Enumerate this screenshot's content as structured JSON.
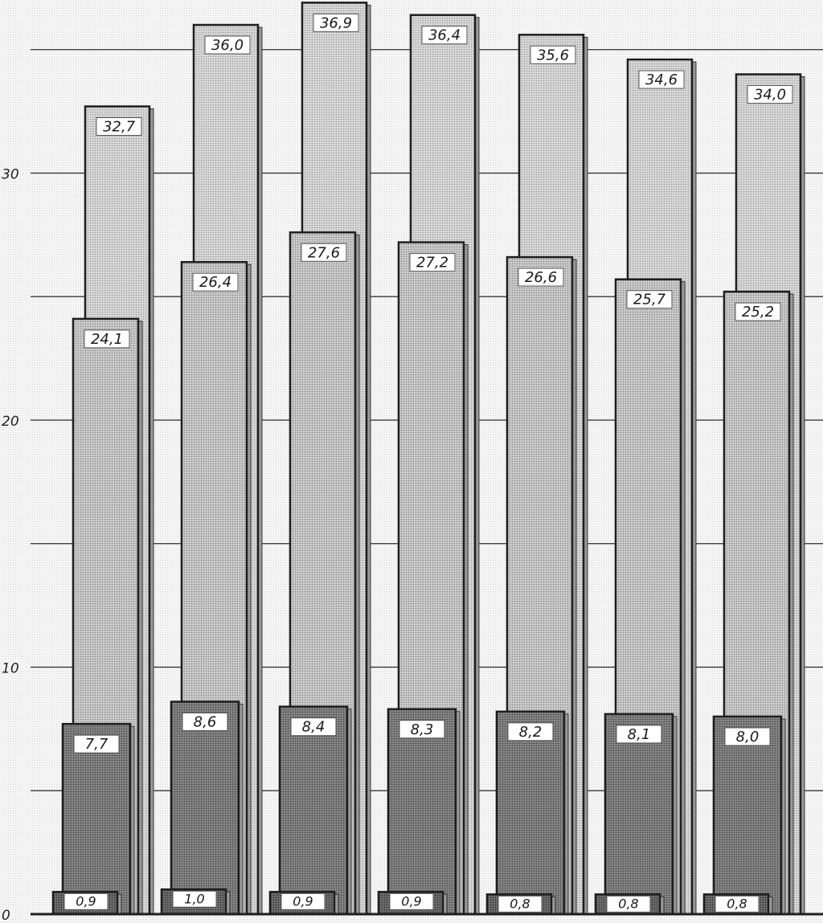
{
  "chart_data": {
    "type": "bar",
    "title": "",
    "xlabel": "",
    "ylabel": "",
    "ylim": [
      0,
      38
    ],
    "yticks": [
      0,
      10,
      20,
      30
    ],
    "ytick_labels": [
      "0",
      "10",
      "20",
      "30"
    ],
    "minor_gridlines": [
      5,
      15,
      25,
      35
    ],
    "grid": true,
    "legend": "none",
    "categories": [
      "",
      "",
      "",
      "",
      "",
      "",
      ""
    ],
    "series": [
      {
        "values": [
          32.7,
          36.0,
          36.9,
          36.4,
          35.6,
          34.6,
          34.0
        ],
        "labels": [
          "32,7",
          "36,0",
          "36,9",
          "36,4",
          "35,6",
          "34,6",
          "34,0"
        ],
        "color": "#c9c9c9"
      },
      {
        "values": [
          24.1,
          26.4,
          27.6,
          27.2,
          26.6,
          25.7,
          25.2
        ],
        "labels": [
          "24,1",
          "26,4",
          "27,6",
          "27,2",
          "26,6",
          "25,7",
          "25,2"
        ],
        "color": "#bcbcbc"
      },
      {
        "values": [
          7.7,
          8.6,
          8.4,
          8.3,
          8.2,
          8.1,
          8.0
        ],
        "labels": [
          "7,7",
          "8,6",
          "8,4",
          "8,3",
          "8,2",
          "8,1",
          "8,0"
        ],
        "color": "#8c8c8c"
      },
      {
        "values": [
          0.9,
          1.0,
          0.9,
          0.9,
          0.8,
          0.8,
          0.8
        ],
        "labels": [
          "0,9",
          "1,0",
          "0,9",
          "0,9",
          "0,8",
          "0,8",
          "0,8"
        ],
        "color": "#6a6a6a"
      }
    ]
  }
}
